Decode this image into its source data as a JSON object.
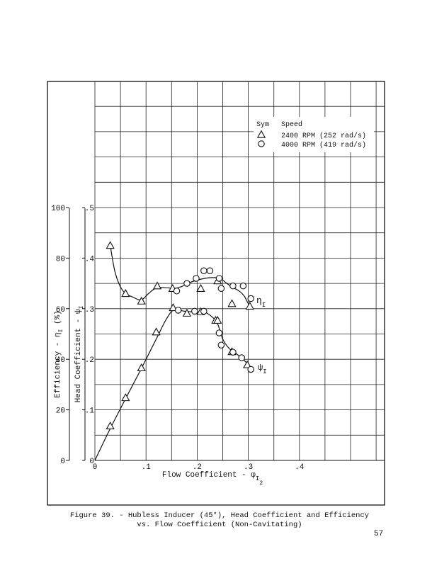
{
  "chart_data": {
    "type": "scatter",
    "xlabel": "Flow Coefficient - φ",
    "xlabel_sub": "I",
    "xlabel_subsub": "2",
    "xlim": [
      0,
      0.5
    ],
    "x_ticks": [
      {
        "v": 0,
        "label": "0"
      },
      {
        "v": 0.1,
        "label": ".1"
      },
      {
        "v": 0.2,
        "label": ".2"
      },
      {
        "v": 0.3,
        "label": ".3"
      },
      {
        "v": 0.4,
        "label": ".4"
      }
    ],
    "y_left_label": "Efficiency - η",
    "y_left_label_sub": "I",
    "y_left_label_unit": "(%)",
    "y_left_lim": [
      0,
      100
    ],
    "y_left_ticks": [
      {
        "v": 0,
        "label": "0"
      },
      {
        "v": 20,
        "label": "20"
      },
      {
        "v": 40,
        "label": "40"
      },
      {
        "v": 60,
        "label": "60"
      },
      {
        "v": 80,
        "label": "80"
      },
      {
        "v": 100,
        "label": "100"
      }
    ],
    "y_right_label": "Head Coefficient - ψ",
    "y_right_label_sub": "I",
    "y_right_lim": [
      0,
      0.5
    ],
    "y_right_ticks": [
      {
        "v": 0,
        "label": "0"
      },
      {
        "v": 0.1,
        "label": ".1"
      },
      {
        "v": 0.2,
        "label": ".2"
      },
      {
        "v": 0.3,
        "label": ".3"
      },
      {
        "v": 0.4,
        "label": ".4"
      },
      {
        "v": 0.5,
        "label": ".5"
      }
    ],
    "grid": true,
    "legend": {
      "position": "top-right",
      "sym_header": "Sym",
      "speed_header": "Speed",
      "entries": [
        {
          "marker": "triangle",
          "label": "2400 RPM (252 rad/s)"
        },
        {
          "marker": "circle",
          "label": "4000 RPM (419 rad/s)"
        }
      ]
    },
    "series": [
      {
        "quantity": "efficiency",
        "marker": "triangle",
        "points": [
          [
            0.03,
            85
          ],
          [
            0.06,
            66
          ],
          [
            0.091,
            63
          ],
          [
            0.122,
            69
          ],
          [
            0.152,
            68
          ],
          [
            0.207,
            68
          ],
          [
            0.24,
            71
          ],
          [
            0.268,
            62
          ],
          [
            0.303,
            61
          ]
        ]
      },
      {
        "quantity": "efficiency",
        "marker": "circle",
        "points": [
          [
            0.16,
            67
          ],
          [
            0.18,
            70
          ],
          [
            0.198,
            72
          ],
          [
            0.213,
            75
          ],
          [
            0.225,
            75
          ],
          [
            0.243,
            72
          ],
          [
            0.247,
            68
          ],
          [
            0.27,
            69
          ],
          [
            0.29,
            69
          ],
          [
            0.305,
            64
          ]
        ]
      },
      {
        "quantity": "head",
        "marker": "triangle",
        "points": [
          [
            0.03,
            0.068
          ],
          [
            0.06,
            0.124
          ],
          [
            0.091,
            0.183
          ],
          [
            0.12,
            0.254
          ],
          [
            0.153,
            0.302
          ],
          [
            0.18,
            0.291
          ],
          [
            0.207,
            0.294
          ],
          [
            0.236,
            0.277
          ],
          [
            0.24,
            0.277
          ],
          [
            0.268,
            0.215
          ],
          [
            0.298,
            0.189
          ]
        ]
      },
      {
        "quantity": "head",
        "marker": "circle",
        "points": [
          [
            0.163,
            0.297
          ],
          [
            0.195,
            0.295
          ],
          [
            0.213,
            0.295
          ],
          [
            0.243,
            0.252
          ],
          [
            0.247,
            0.228
          ],
          [
            0.27,
            0.214
          ],
          [
            0.287,
            0.203
          ],
          [
            0.305,
            0.18
          ]
        ]
      }
    ],
    "curves": [
      {
        "name": "η",
        "sub": "I",
        "quantity": "efficiency",
        "points": [
          [
            0.03,
            85
          ],
          [
            0.04,
            74
          ],
          [
            0.055,
            67
          ],
          [
            0.075,
            64.5
          ],
          [
            0.091,
            63.5
          ],
          [
            0.105,
            66
          ],
          [
            0.12,
            68.2
          ],
          [
            0.14,
            68.3
          ],
          [
            0.155,
            68
          ],
          [
            0.17,
            68.8
          ],
          [
            0.185,
            70.3
          ],
          [
            0.2,
            71.3
          ],
          [
            0.215,
            72
          ],
          [
            0.23,
            72.3
          ],
          [
            0.245,
            72
          ],
          [
            0.258,
            70
          ],
          [
            0.27,
            68.4
          ],
          [
            0.282,
            67
          ],
          [
            0.292,
            65
          ],
          [
            0.3,
            62
          ],
          [
            0.308,
            60
          ]
        ]
      },
      {
        "name": "ψ",
        "sub": "I",
        "quantity": "head",
        "points": [
          [
            0.0,
            0.0
          ],
          [
            0.03,
            0.063
          ],
          [
            0.06,
            0.122
          ],
          [
            0.09,
            0.18
          ],
          [
            0.12,
            0.24
          ],
          [
            0.14,
            0.28
          ],
          [
            0.155,
            0.298
          ],
          [
            0.175,
            0.295
          ],
          [
            0.2,
            0.293
          ],
          [
            0.215,
            0.293
          ],
          [
            0.23,
            0.283
          ],
          [
            0.24,
            0.27
          ],
          [
            0.25,
            0.24
          ],
          [
            0.262,
            0.222
          ],
          [
            0.275,
            0.212
          ],
          [
            0.29,
            0.2
          ],
          [
            0.302,
            0.186
          ],
          [
            0.308,
            0.175
          ]
        ]
      }
    ]
  },
  "caption": {
    "line1": "Figure 39. - Hubless Inducer (45°), Head Coefficient and Efficiency",
    "line2": "vs. Flow Coefficient (Non-Cavitating)"
  },
  "page_number": "57"
}
